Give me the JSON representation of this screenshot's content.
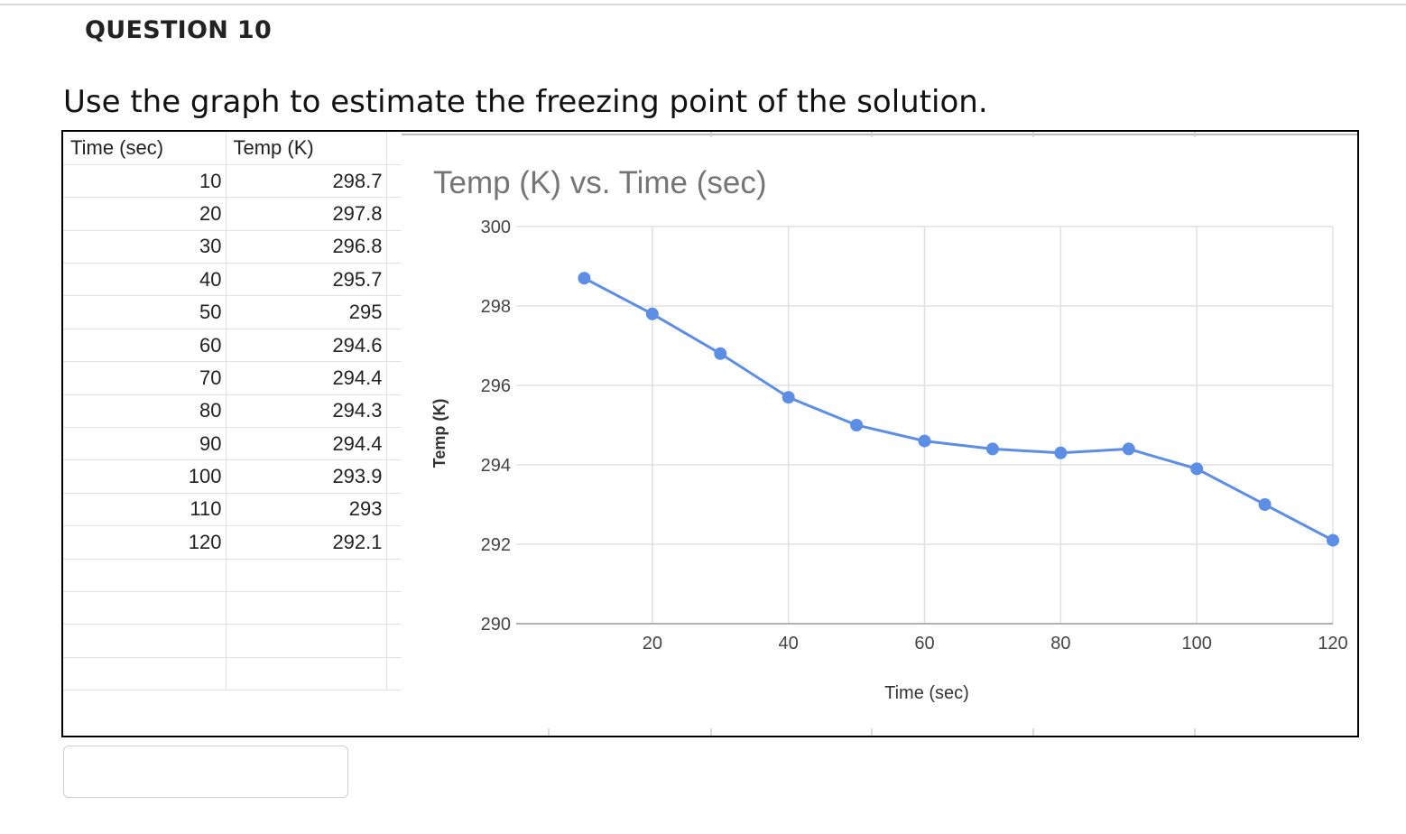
{
  "question": {
    "heading": "QUESTION 10",
    "text": "Use the graph to estimate the freezing point of the solution."
  },
  "table": {
    "headers": [
      "Time (sec)",
      "Temp (K)"
    ],
    "rows": [
      [
        "10",
        "298.7"
      ],
      [
        "20",
        "297.8"
      ],
      [
        "30",
        "296.8"
      ],
      [
        "40",
        "295.7"
      ],
      [
        "50",
        "295"
      ],
      [
        "60",
        "294.6"
      ],
      [
        "70",
        "294.4"
      ],
      [
        "80",
        "294.3"
      ],
      [
        "90",
        "294.4"
      ],
      [
        "100",
        "293.9"
      ],
      [
        "110",
        "293"
      ],
      [
        "120",
        "292.1"
      ]
    ],
    "empty_rows": 4
  },
  "chart_data": {
    "type": "line",
    "title": "Temp (K) vs. Time (sec)",
    "xlabel": "Time (sec)",
    "ylabel": "Temp (K)",
    "x": [
      10,
      20,
      30,
      40,
      50,
      60,
      70,
      80,
      90,
      100,
      110,
      120
    ],
    "series": [
      {
        "values": [
          298.7,
          297.8,
          296.8,
          295.7,
          295,
          294.6,
          294.4,
          294.3,
          294.4,
          293.9,
          293,
          292.1
        ]
      }
    ],
    "xlim": [
      10,
      120
    ],
    "ylim": [
      290,
      300
    ],
    "xticks": [
      "20",
      "40",
      "60",
      "80",
      "100",
      "120"
    ],
    "yticks": [
      "290",
      "292",
      "294",
      "296",
      "298",
      "300"
    ],
    "grid": true,
    "legend": "none",
    "line_color": "#5b8ee4",
    "grid_color": "#e0e0e0",
    "title_color": "#757575"
  },
  "answer": {
    "value": ""
  }
}
